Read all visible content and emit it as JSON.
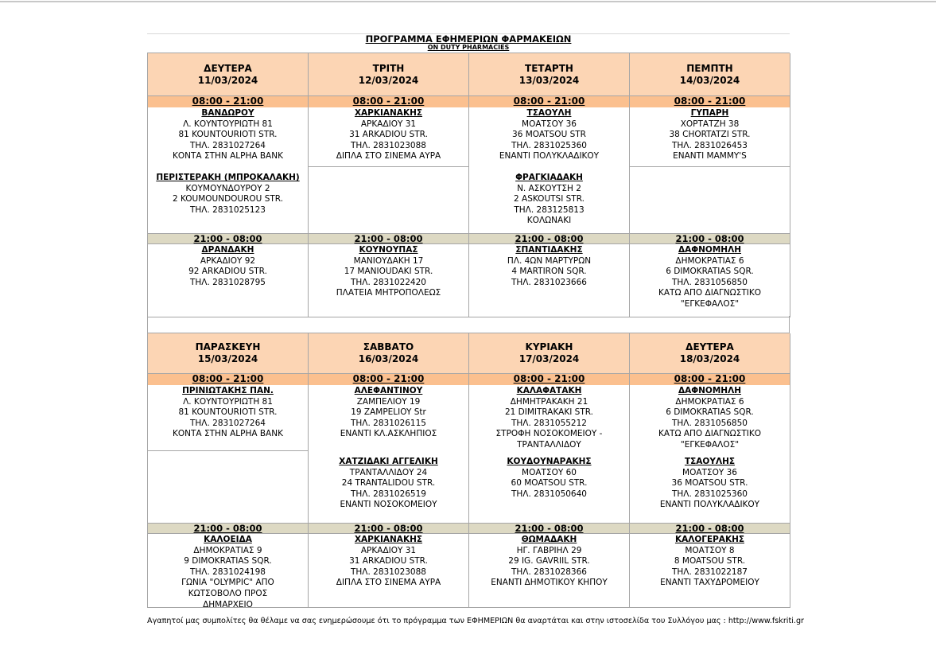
{
  "header": {
    "title": "ΠΡΟΓΡΑΜΜΑ ΕΦΗΜΕΡΙΩΝ ΦΑΡΜΑΚΕΙΩΝ",
    "subtitle": "ON DUTY PHARMACIES"
  },
  "weeks": [
    {
      "days": [
        {
          "day": "ΔΕΥΤΕΡΑ",
          "date": "11/03/2024",
          "day_hours": "08:00 - 21:00",
          "day_pharmacies": [
            {
              "name": "ΒΑΝΔΩΡΟΥ",
              "lines": [
                "Λ. ΚΟΥΝΤΟΥΡΙΩΤΗ 81",
                "81 KOUNTOURIOTI STR.",
                "ΤΗΛ. 2831027264",
                "ΚΟΝΤΑ ΣΤΗΝ ALPHA BANK"
              ]
            },
            {
              "name": "ΠΕΡΙΣΤΕΡΑΚΗ (ΜΠΡΟΚΑΛΑΚΗ)",
              "lines": [
                "ΚΟΥΜΟΥΝΔΟΥΡΟΥ 2",
                "2 KOUMOUNDOUROU STR.",
                "ΤΗΛ. 2831025123"
              ]
            }
          ],
          "night_hours": "21:00 - 08:00",
          "night_pharmacies": [
            {
              "name": "ΔΡΑΝΔΑΚΗ",
              "lines": [
                "ΑΡΚΑΔΙΟΥ 92",
                "92 ARKADIOU STR.",
                "ΤΗΛ. 2831028795"
              ]
            }
          ]
        },
        {
          "day": "ΤΡΙΤΗ",
          "date": "12/03/2024",
          "day_hours": "08:00 - 21:00",
          "day_pharmacies": [
            {
              "name": "ΧΑΡΚΙΑΝΑΚΗΣ",
              "lines": [
                "ΑΡΚΑΔΙΟΥ 31",
                "31 ARKADIOU STR.",
                "ΤΗΛ. 2831023088",
                "ΔΙΠΛΑ ΣΤΟ ΣΙΝΕΜΑ ΑΥΡΑ"
              ]
            }
          ],
          "night_hours": "21:00 - 08:00",
          "night_pharmacies": [
            {
              "name": "ΚΟΥΝΟΥΠΑΣ",
              "lines": [
                "ΜΑΝΙΟΥΔΑΚΗ 17",
                "17 MANIOUDAKI STR.",
                "ΤΗΛ. 2831022420",
                "ΠΛΑΤΕΙΑ ΜΗΤΡΟΠΟΛΕΩΣ"
              ]
            }
          ]
        },
        {
          "day": "ΤΕΤΑΡΤΗ",
          "date": "13/03/2024",
          "day_hours": "08:00 - 21:00",
          "day_pharmacies": [
            {
              "name": "ΤΣΑΟΥΛΗ",
              "lines": [
                "ΜΟΑΤΣΟΥ 36",
                "36 MOATSOU STR",
                "ΤΗΛ. 2831025360",
                "ΕΝΑΝΤΙ ΠΟΛΥΚΛΑΔΙΚΟΥ"
              ]
            },
            {
              "name": "ΦΡΑΓΚΙΑΔΑΚΗ",
              "lines": [
                "Ν. ΑΣΚΟΥΤΣΗ  2",
                "2 ASKOUTSI STR.",
                "ΤΗΛ. 283125813",
                "ΚΟΛΩΝΑΚΙ"
              ]
            }
          ],
          "night_hours": "21:00 - 08:00",
          "night_pharmacies": [
            {
              "name": "ΣΠΑΝΤΙΔΑΚΗΣ",
              "lines": [
                "ΠΛ. 4ΩΝ ΜΑΡΤΥΡΩΝ",
                "4 MARTIRON SQR.",
                "ΤΗΛ. 2831023666"
              ]
            }
          ]
        },
        {
          "day": "ΠΕΜΠΤΗ",
          "date": "14/03/2024",
          "day_hours": "08:00 - 21:00",
          "day_pharmacies": [
            {
              "name": "ΓΥΠΑΡΗ",
              "lines": [
                "ΧΟΡΤΑΤΖΗ 38",
                "38 CHORTATZI STR.",
                "ΤΗΛ. 2831026453",
                "ΕΝΑΝΤΙ  MAMMY'S"
              ]
            }
          ],
          "night_hours": "21:00 - 08:00",
          "night_pharmacies": [
            {
              "name": "ΔΑΦΝΟΜΗΛΗ",
              "lines": [
                "ΔΗΜΟΚΡΑΤΙΑΣ 6",
                "6 DIMOKRATIAS SQR.",
                "ΤΗΛ. 2831056850",
                "ΚΑΤΩ ΑΠΟ ΔΙΑΓΝΩΣΤΙΚΟ",
                "\"ΕΓΚΕΦΑΛΟΣ\""
              ]
            }
          ]
        }
      ]
    },
    {
      "days": [
        {
          "day": "ΠΑΡΑΣΚΕΥΗ",
          "date": "15/03/2024",
          "day_hours": "08:00 - 21:00",
          "day_pharmacies": [
            {
              "name": "ΠΡΙΝΙΩΤΑΚΗΣ ΠΑΝ.",
              "lines": [
                "Λ. ΚΟΥΝΤΟΥΡΙΩΤΗ 81",
                "81 KOUNTOURIOTI STR.",
                "ΤΗΛ. 2831027264",
                "ΚΟΝΤΑ ΣΤΗΝ ALPHA BANK"
              ]
            }
          ],
          "night_hours": "21:00 - 08:00",
          "night_pharmacies": [
            {
              "name": "ΚΑΛΟΕΙΔΑ",
              "lines": [
                "ΔΗΜΟΚΡΑΤΙΑΣ 9",
                "9 DIMOKRATIAS SQR.",
                "ΤΗΛ. 2831024198",
                "ΓΩΝΙΑ \"OLYMPIC\" ΑΠΟ",
                "ΚΩΤΣΟΒΟΛΟ ΠΡΟΣ",
                "ΔΗΜΑΡΧΕΙΟ"
              ]
            }
          ]
        },
        {
          "day": "ΣΑΒΒΑΤΟ",
          "date": "16/03/2024",
          "day_hours": "08:00 - 21:00",
          "day_pharmacies": [
            {
              "name": "ΑΛΕΦΑΝΤΙΝΟΥ",
              "lines": [
                "ΖΑΜΠΕΛΙΟΥ 19",
                "19 ZAMPELIOY Str",
                "ΤΗΛ. 2831026115",
                "ΕΝΑΝΤΙ ΚΛ.ΑΣΚΛΗΠΙΟΣ"
              ]
            },
            {
              "name": "ΧΑΤΖΙΔΑΚΙ ΑΓΓΕΛΙΚΗ",
              "lines": [
                "ΤΡΑΝΤΑΛΛΙΔΟΥ 24",
                "24 TRANTALIDOU STR.",
                "ΤΗΛ. 2831026519",
                "ΕΝΑΝΤΙ ΝΟΣΟΚΟΜΕΙΟΥ"
              ]
            }
          ],
          "night_hours": "21:00 - 08:00",
          "night_pharmacies": [
            {
              "name": "ΧΑΡΚΙΑΝΑΚΗΣ",
              "lines": [
                "ΑΡΚΑΔΙΟΥ 31",
                "31 ARKADIOU STR.",
                "ΤΗΛ. 2831023088",
                "ΔΙΠΛΑ ΣΤΟ ΣΙΝΕΜΑ ΑΥΡΑ"
              ]
            }
          ]
        },
        {
          "day": "ΚΥΡΙΑΚΗ",
          "date": "17/03/2024",
          "day_hours": "08:00 - 21:00",
          "day_pharmacies": [
            {
              "name": "ΚΑΛΑΦΑΤΑΚΗ",
              "lines": [
                "ΔΗΜΗΤΡΑΚΑΚΗ 21",
                "21 DIMITRAKAKI STR.",
                "ΤΗΛ. 2831055212",
                "ΣΤΡΟΦΗ ΝΟΣΟΚΟΜΕΙΟΥ -",
                "ΤΡΑΝΤΑΛΛΙΔΟΥ"
              ]
            },
            {
              "name": "ΚΟΥΔΟΥΝΑΡΑΚΗΣ",
              "lines": [
                "ΜΟΑΤΣΟΥ 60",
                "60 MOATSOU STR.",
                "ΤΗΛ. 2831050640"
              ]
            }
          ],
          "night_hours": "21:00 - 08:00",
          "night_pharmacies": [
            {
              "name": "ΘΩΜΑΔΑΚΗ",
              "lines": [
                "ΗΓ. ΓΑΒΡΙΗΛ 29",
                "29 IG. GAVRIIL STR.",
                "ΤΗΛ. 2831028366",
                "ΕΝΑΝΤΙ ΔΗΜΟΤΙΚΟΥ ΚΗΠΟΥ"
              ]
            }
          ]
        },
        {
          "day": "ΔΕΥΤΕΡΑ",
          "date": "18/03/2024",
          "day_hours": "08:00 - 21:00",
          "day_pharmacies": [
            {
              "name": "ΔΑΦΝΟΜΗΛΗ",
              "lines": [
                "ΔΗΜΟΚΡΑΤΙΑΣ 6",
                "6 DIMOKRATIAS SQR.",
                "ΤΗΛ. 2831056850",
                "ΚΑΤΩ ΑΠΟ ΔΙΑΓΝΩΣΤΙΚΟ",
                "\"ΕΓΚΕΦΑΛΟΣ\""
              ]
            },
            {
              "name": "ΤΣΑΟΥΛΗΣ",
              "lines": [
                "ΜΟΑΤΣΟΥ 36",
                "36 MOATSOU STR.",
                "ΤΗΛ. 2831025360",
                "ΕΝΑΝΤΙ ΠΟΛΥΚΛΑΔΙΚΟΥ"
              ]
            }
          ],
          "night_hours": "21:00 - 08:00",
          "night_pharmacies": [
            {
              "name": "ΚΑΛΟΓΕΡΑΚΗΣ",
              "lines": [
                "ΜΟΑΤΣΟΥ 8",
                "8 MOATSOU STR.",
                "ΤΗΛ. 2831022187",
                "ΕΝΑΝΤΙ ΤΑΧΥΔΡΟΜΕΙΟΥ"
              ]
            }
          ]
        }
      ]
    }
  ],
  "footer": "Αγαπητοί μας συμπολίτες θα θέλαμε να σας ενημερώσουμε ότι το πρόγραμμα των ΕΦΗΜΕΡΙΩΝ θα αναρτάται και στην ιστοσελίδα του Συλλόγου μας :  http://www.fskriti.gr"
}
